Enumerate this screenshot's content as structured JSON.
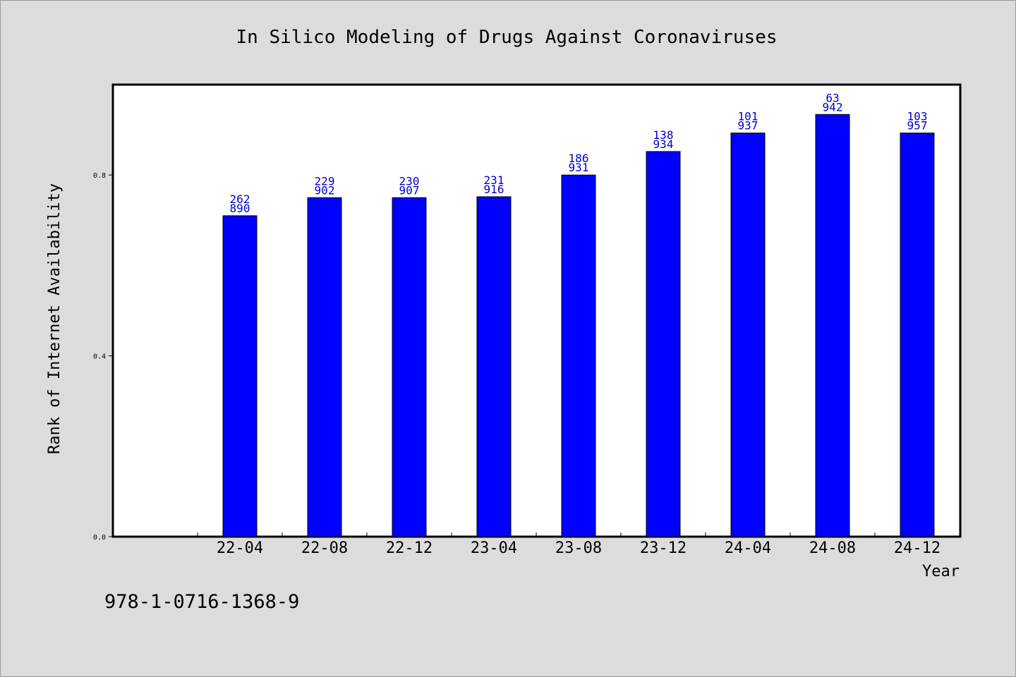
{
  "colors": {
    "background": "#dcdcdc",
    "plot_background": "#ffffff",
    "bar": "#0000ff",
    "bar_label": "#0000cc",
    "axis": "#000000"
  },
  "footer": {
    "isbn": "978-1-0716-1368-9"
  },
  "chart_data": {
    "type": "bar",
    "title": "In Silico Modeling of Drugs Against Coronaviruses",
    "xlabel": "Year",
    "ylabel": "Rank of Internet Availability",
    "categories": [
      "22-04",
      "22-08",
      "22-12",
      "23-04",
      "23-08",
      "23-12",
      "24-04",
      "24-08",
      "24-12"
    ],
    "values": [
      0.71,
      0.75,
      0.75,
      0.752,
      0.8,
      0.852,
      0.893,
      0.934,
      0.893
    ],
    "label_top": [
      "262",
      "229",
      "230",
      "231",
      "186",
      "138",
      "101",
      "63",
      "103"
    ],
    "label_bottom": [
      "890",
      "902",
      "907",
      "916",
      "931",
      "934",
      "937",
      "942",
      "957"
    ],
    "yticks": [
      "0.0",
      "0.4",
      "0.8"
    ],
    "ylim": [
      0,
      1.0
    ],
    "grid": false,
    "legend": "none"
  }
}
